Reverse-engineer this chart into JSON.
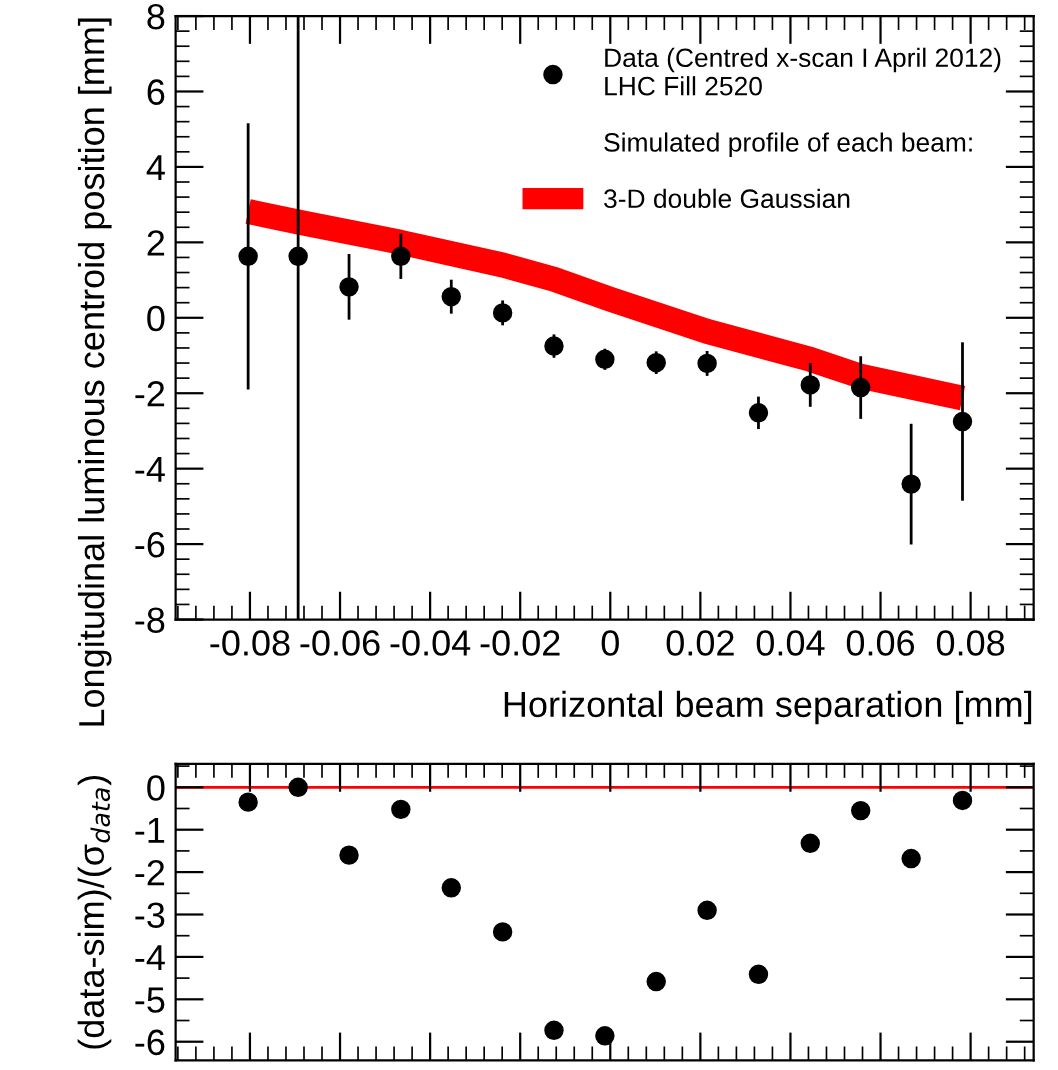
{
  "chart_data": [
    {
      "type": "scatter",
      "xlabel": "Horizontal beam separation [mm]",
      "ylabel": "Longitudinal luminous centroid position [mm]",
      "legend_title": "Simulated profile of each beam:",
      "legend": "top right",
      "marker": "circle",
      "xlim": [
        -0.0965,
        0.094
      ],
      "ylim": [
        -8,
        8
      ],
      "xticks": [
        -0.08,
        -0.06,
        -0.04,
        -0.02,
        0,
        0.02,
        0.04,
        0.06,
        0.08
      ],
      "yticks": [
        -8,
        -6,
        -4,
        -2,
        0,
        2,
        4,
        6,
        8
      ],
      "series": [
        {
          "name": "Data (Centred x-scan I April 2012)\nLHC Fill 2520",
          "type": "scatter",
          "color": "#000000",
          "x": [
            -0.0804,
            -0.0693,
            -0.058,
            -0.0465,
            -0.0353,
            -0.0239,
            -0.0125,
            -0.0012,
            0.0102,
            0.0215,
            0.0329,
            0.0444,
            0.0556,
            0.0668,
            0.0782
          ],
          "values": [
            1.63,
            1.63,
            0.82,
            1.63,
            0.56,
            0.13,
            -0.75,
            -1.1,
            -1.19,
            -1.21,
            -2.52,
            -1.78,
            -1.85,
            -4.41,
            -2.75
          ],
          "errors": [
            3.53,
            [
              -8,
              8
            ],
            0.87,
            0.6,
            0.45,
            0.33,
            0.31,
            0.28,
            0.3,
            0.33,
            0.43,
            0.58,
            0.83,
            1.6,
            2.1
          ]
        },
        {
          "name": "3-D double Gaussian",
          "type": "line",
          "marker": "none",
          "color": "#ff0000",
          "x": [
            -0.0804,
            -0.0693,
            -0.0465,
            -0.0239,
            -0.0125,
            0.0,
            0.0215,
            0.0444,
            0.0556,
            0.0782
          ],
          "values": [
            2.82,
            2.54,
            2.0,
            1.4,
            1.02,
            0.49,
            -0.36,
            -1.1,
            -1.55,
            -2.13
          ]
        }
      ]
    },
    {
      "type": "scatter",
      "ylabel": "(data-sim)/(σ$_{data}$)",
      "tick_labels": "y",
      "marker": "circle",
      "xlim": [
        -0.0965,
        0.094
      ],
      "ylim": [
        -6.44,
        0.55
      ],
      "xticks": [
        {
          "value": -0.08,
          "label": null
        },
        {
          "value": -0.06,
          "label": null
        },
        {
          "value": -0.04,
          "label": null
        },
        {
          "value": -0.02,
          "label": null
        },
        {
          "value": 0,
          "label": null
        },
        {
          "value": 0.02,
          "label": null
        },
        {
          "value": 0.04,
          "label": null
        },
        {
          "value": 0.06,
          "label": null
        },
        {
          "value": 0.08,
          "label": null
        }
      ],
      "yticks": [
        -6,
        -5,
        -4,
        -3,
        -2,
        -1,
        0
      ],
      "ref_lines": [
        {
          "axis": "y",
          "value": 0,
          "color": "#ff0000"
        }
      ],
      "series": [
        {
          "color": "#000000",
          "x": [
            -0.0804,
            -0.0693,
            -0.058,
            -0.0465,
            -0.0353,
            -0.0239,
            -0.0125,
            -0.0012,
            0.0102,
            0.0215,
            0.0329,
            0.0444,
            0.0556,
            0.0668,
            0.0782
          ],
          "values": [
            -0.35,
            0.0,
            -1.6,
            -0.52,
            -2.37,
            -3.41,
            -5.73,
            -5.86,
            -4.58,
            -2.9,
            -4.41,
            -1.32,
            -0.55,
            -1.68,
            -0.31
          ]
        }
      ]
    }
  ]
}
